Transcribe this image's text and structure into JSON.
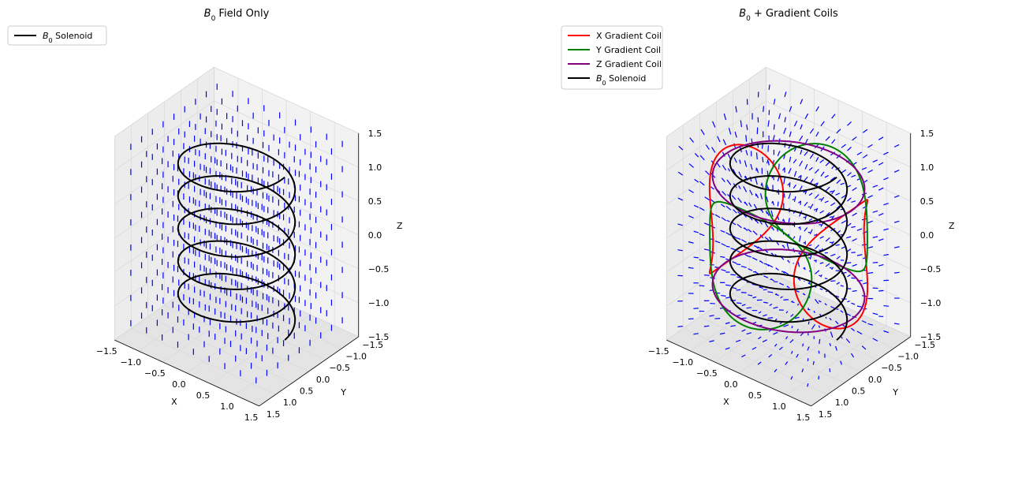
{
  "chart_data": [
    {
      "type": "quiver3d",
      "title_main": "B",
      "title_sub": "0",
      "title_rest": " Field Only",
      "xlabel": "X",
      "ylabel": "Y",
      "zlabel": "Z",
      "xlim": [
        -1.5,
        1.5
      ],
      "ylim": [
        -1.5,
        1.5
      ],
      "zlim": [
        -1.5,
        1.5
      ],
      "x_ticks": [
        "−1.5",
        "−1.0",
        "−0.5",
        "0.0",
        "0.5",
        "1.0",
        "1.5"
      ],
      "y_ticks": [
        "−1.5",
        "−1.0",
        "−0.5",
        "0.0",
        "0.5",
        "1.0",
        "1.5"
      ],
      "z_ticks": [
        "−1.5",
        "−1.0",
        "−0.5",
        "0.0",
        "0.5",
        "1.0",
        "1.5"
      ],
      "x_tick_values": [
        -1.5,
        -1.0,
        -0.5,
        0.0,
        0.5,
        1.0,
        1.5
      ],
      "field": "uniform +z",
      "field_grid": {
        "range": [
          -1.3,
          1.3
        ],
        "steps": 9,
        "z_range": [
          -1.3,
          1.3
        ],
        "z_steps": 8
      },
      "vector_color": "#0000ff",
      "series": [
        {
          "name_main": "B",
          "name_sub": "0",
          "name_rest": " Solenoid",
          "color": "#000000",
          "shape": "helix",
          "radius": 1.0,
          "z_start": -1.2,
          "z_end": 1.2,
          "turns": 5
        }
      ]
    },
    {
      "type": "quiver3d",
      "title_main": "B",
      "title_sub": "0",
      "title_rest": " + Gradient Coils",
      "xlabel": "X",
      "ylabel": "Y",
      "zlabel": "Z",
      "xlim": [
        -1.5,
        1.5
      ],
      "ylim": [
        -1.5,
        1.5
      ],
      "zlim": [
        -1.5,
        1.5
      ],
      "x_ticks": [
        "−1.5",
        "−1.0",
        "−0.5",
        "0.0",
        "0.5",
        "1.0",
        "1.5"
      ],
      "y_ticks": [
        "−1.5",
        "−1.0",
        "−0.5",
        "0.0",
        "0.5",
        "1.0",
        "1.5"
      ],
      "z_ticks": [
        "−1.5",
        "−1.0",
        "−0.5",
        "0.0",
        "0.5",
        "1.0",
        "1.5"
      ],
      "field": "B0 + gradient",
      "field_grid": {
        "range": [
          -1.3,
          1.3
        ],
        "steps": 9,
        "z_range": [
          -1.3,
          1.3
        ],
        "z_steps": 8
      },
      "vector_color": "#0000ff",
      "series": [
        {
          "name": "X Gradient Coil",
          "color": "#ff0000",
          "shape": "saddle-x"
        },
        {
          "name": "Y Gradient Coil",
          "color": "#008000",
          "shape": "saddle-y"
        },
        {
          "name": "Z Gradient Coil",
          "color": "#800080",
          "shape": "maxwell-pair",
          "radius": 1.3,
          "z_values": [
            -0.8,
            0.8
          ]
        },
        {
          "name_main": "B",
          "name_sub": "0",
          "name_rest": " Solenoid",
          "color": "#000000",
          "shape": "helix",
          "radius": 1.0,
          "z_start": -1.2,
          "z_end": 1.2,
          "turns": 5
        }
      ]
    }
  ]
}
